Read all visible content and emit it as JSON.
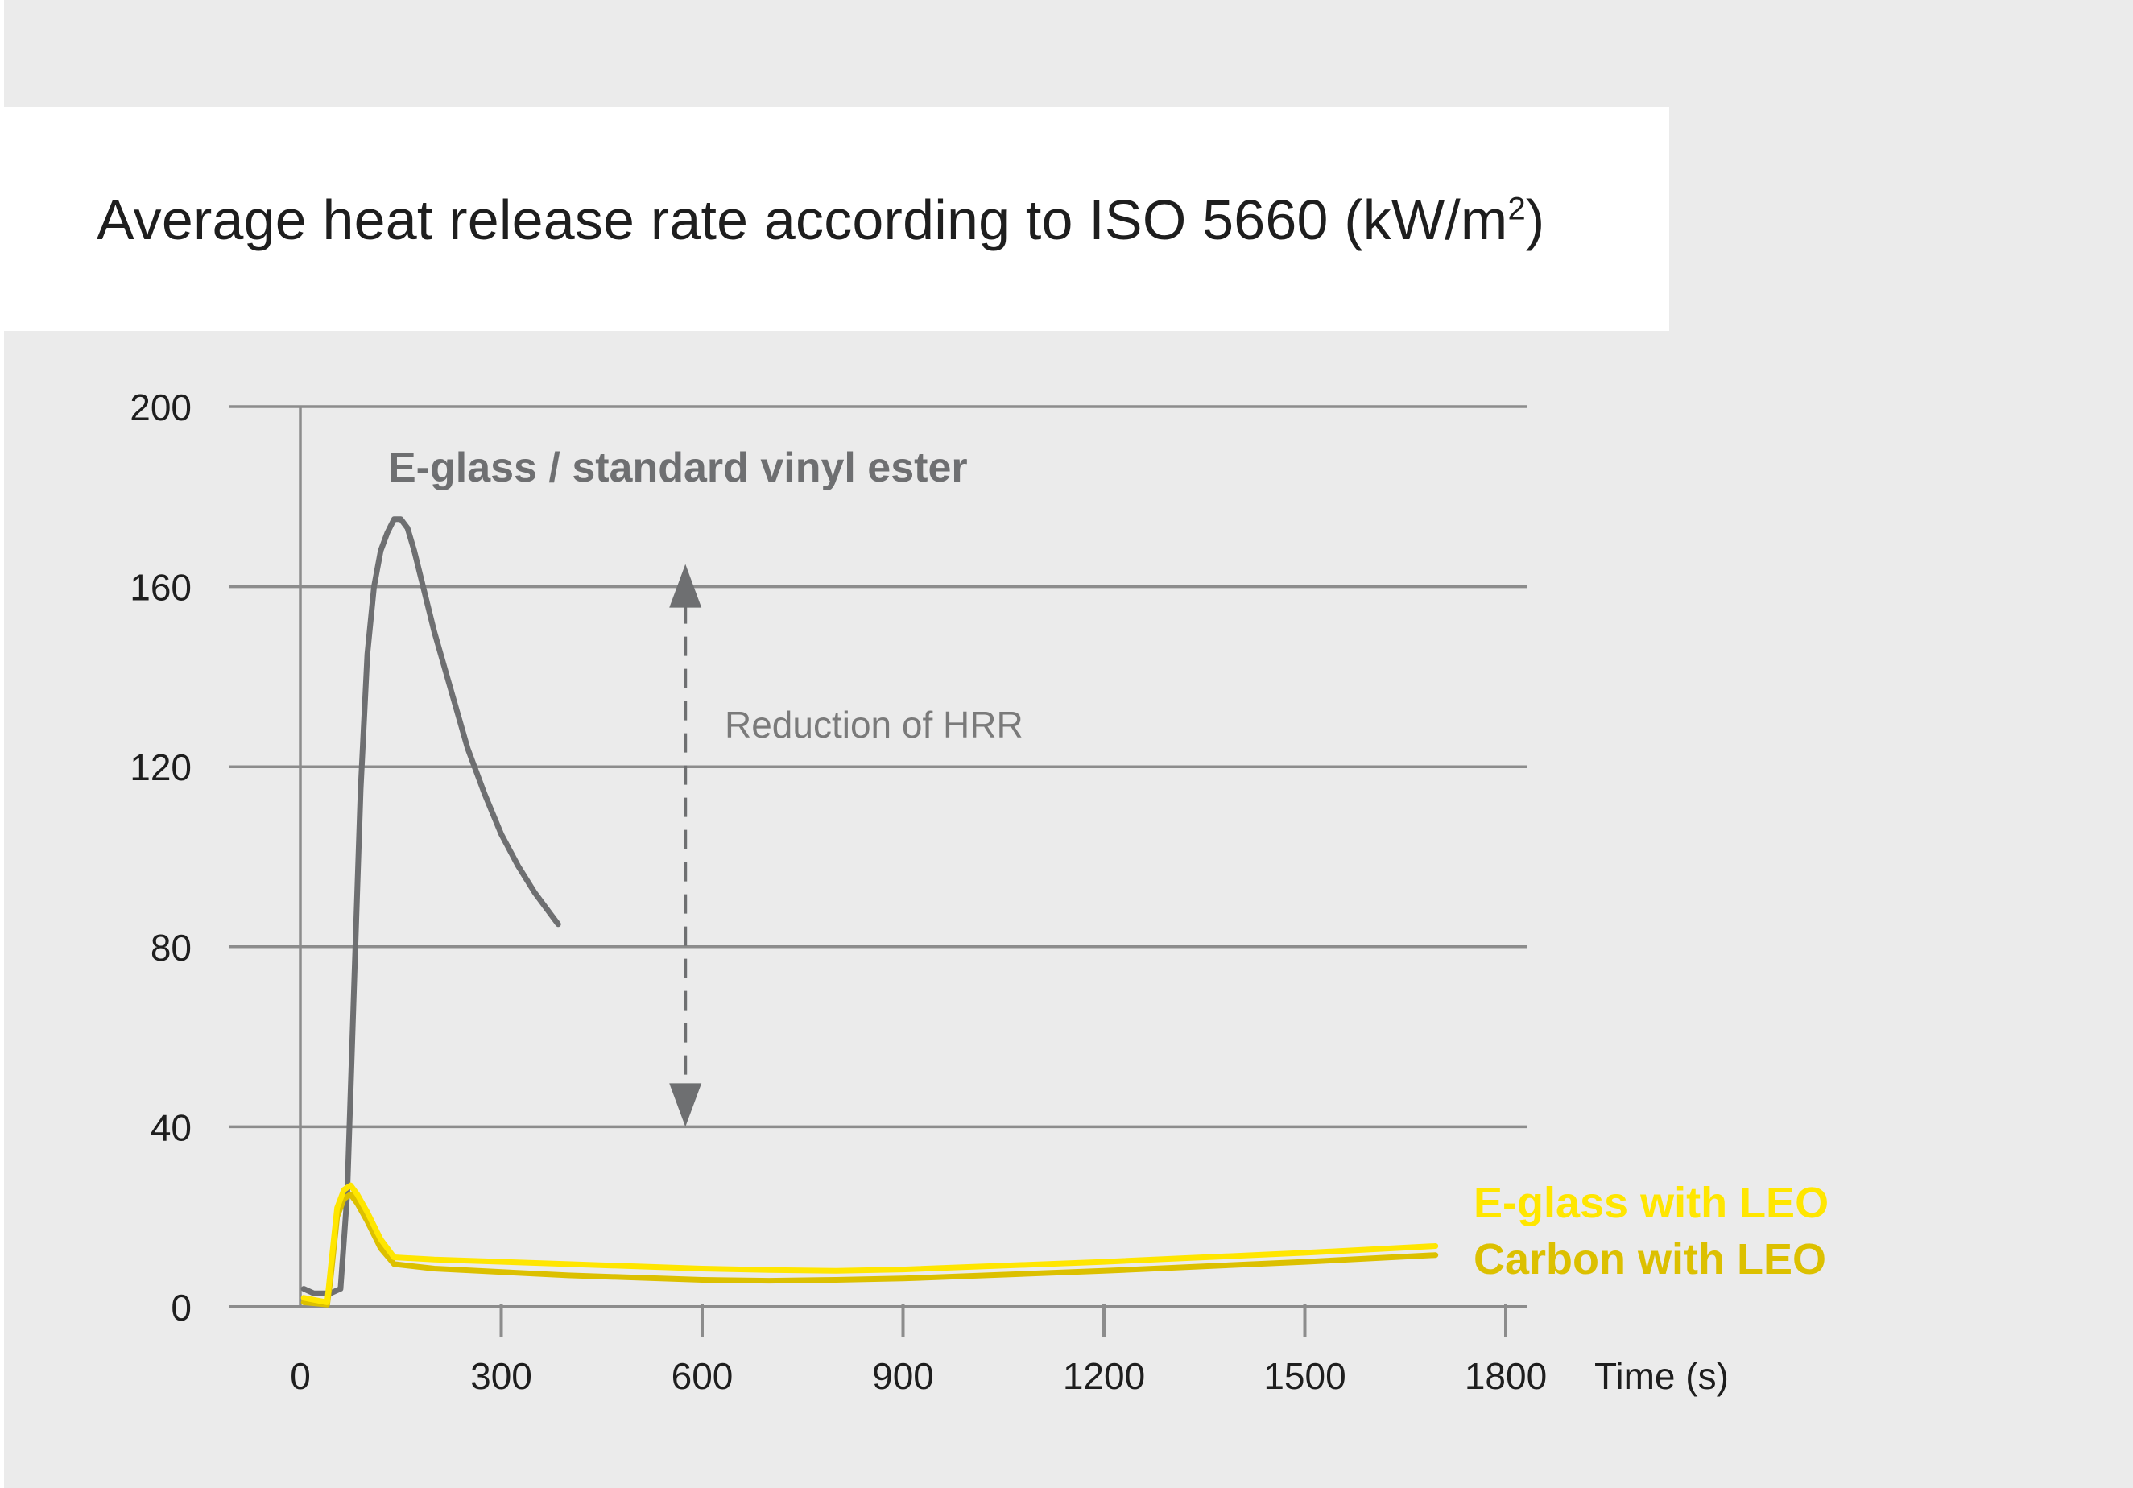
{
  "chart_data": {
    "type": "line",
    "title": "Average heat release rate according to ISO 5660 (kW/m",
    "title_superscript": "2",
    "title_suffix": ")",
    "xlabel": "Time (s)",
    "ylabel": "",
    "xlim": [
      0,
      1800
    ],
    "ylim": [
      0,
      200
    ],
    "x_ticks": [
      "0",
      "300",
      "600",
      "900",
      "1200",
      "1500",
      "1800"
    ],
    "y_ticks": [
      "0",
      "40",
      "80",
      "120",
      "160",
      "200"
    ],
    "grid": "horizontal",
    "series": [
      {
        "name": "E-glass / standard vinyl ester",
        "color": "#6e6f71",
        "x": [
          5,
          20,
          45,
          60,
          70,
          80,
          90,
          100,
          110,
          120,
          130,
          140,
          150,
          160,
          170,
          180,
          200,
          225,
          250,
          275,
          300,
          325,
          350,
          375,
          385
        ],
        "y": [
          4,
          3,
          3,
          4,
          25,
          70,
          115,
          145,
          160,
          168,
          172,
          175,
          175,
          173,
          168,
          162,
          150,
          137,
          124,
          114,
          105,
          98,
          92,
          87,
          85
        ]
      },
      {
        "name": "E-glass with LEO",
        "color": "#ffe600",
        "x": [
          5,
          40,
          45,
          55,
          65,
          75,
          85,
          100,
          120,
          140,
          200,
          400,
          600,
          700,
          800,
          900,
          1200,
          1500,
          1695
        ],
        "y": [
          2,
          1,
          8,
          22,
          26,
          27,
          25,
          21,
          15,
          11,
          10.5,
          9.5,
          8.5,
          8.2,
          8,
          8.3,
          10,
          12,
          13.5
        ]
      },
      {
        "name": "Carbon with LEO",
        "color": "#dcc000",
        "x": [
          5,
          40,
          45,
          55,
          65,
          75,
          85,
          100,
          120,
          140,
          200,
          400,
          600,
          700,
          800,
          900,
          1200,
          1500,
          1695
        ],
        "y": [
          1,
          0.5,
          6,
          20,
          24,
          25,
          23,
          19,
          13,
          9.5,
          8.5,
          7,
          6,
          5.8,
          6,
          6.3,
          8,
          10,
          11.5
        ]
      }
    ],
    "annotations": [
      {
        "text": "Reduction of HRR",
        "type": "double-arrow",
        "x": 575,
        "y_from": 40,
        "y_to": 165
      }
    ]
  }
}
